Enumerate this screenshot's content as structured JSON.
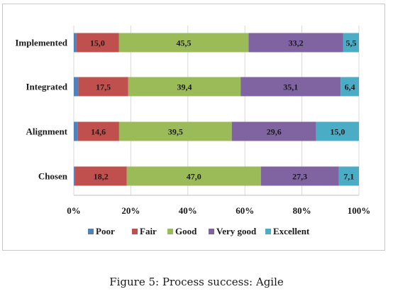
{
  "chart_data": {
    "type": "bar",
    "orientation": "horizontal",
    "stacked": true,
    "normalized": true,
    "categories": [
      "Implemented",
      "Integrated",
      "Alignment",
      "Chosen"
    ],
    "series": [
      {
        "name": "Poor",
        "color": "#4f81bd",
        "values": [
          0.8,
          1.6,
          1.3,
          0.4
        ]
      },
      {
        "name": "Fair",
        "color": "#c0504d",
        "values": [
          15.0,
          17.5,
          14.6,
          18.2
        ]
      },
      {
        "name": "Good",
        "color": "#9bbb59",
        "values": [
          45.5,
          39.4,
          39.5,
          47.0
        ]
      },
      {
        "name": "Very good",
        "color": "#8064a2",
        "values": [
          33.2,
          35.1,
          29.6,
          27.3
        ]
      },
      {
        "name": "Excellent",
        "color": "#4bacc6",
        "values": [
          5.5,
          6.4,
          15.0,
          7.1
        ]
      }
    ],
    "data_labels": {
      "Fair": [
        "15,0",
        "17,5",
        "14,6",
        "18,2"
      ],
      "Good": [
        "45,5",
        "39,4",
        "39,5",
        "47,0"
      ],
      "Very good": [
        "33,2",
        "35,1",
        "29,6",
        "27,3"
      ],
      "Excellent": [
        "5,5",
        "6,4",
        "15,0",
        "7,1"
      ]
    },
    "xlim": [
      0,
      100
    ],
    "ticks": [
      0,
      20,
      40,
      60,
      80,
      100
    ],
    "tick_labels": [
      "0%",
      "20%",
      "40%",
      "60%",
      "80%",
      "100%"
    ],
    "grid": true,
    "legend": "bottom"
  },
  "caption": "Figure 5: Process success: Agile"
}
